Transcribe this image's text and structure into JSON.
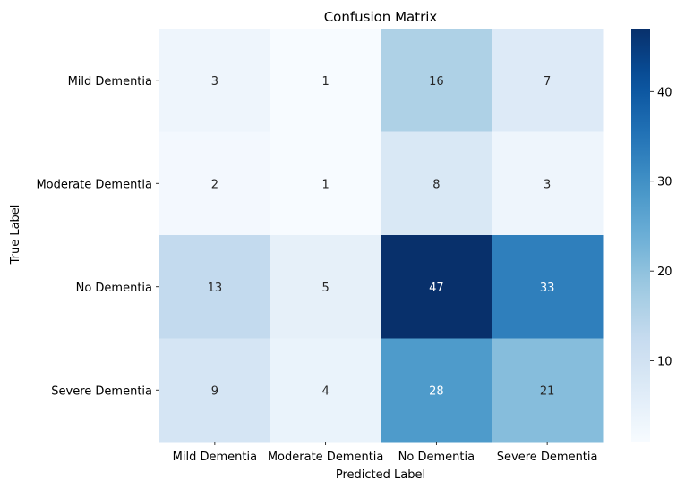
{
  "chart_data": {
    "type": "heatmap",
    "title": "Confusion Matrix",
    "xlabel": "Predicted Label",
    "ylabel": "True Label",
    "x_categories": [
      "Mild Dementia",
      "Moderate Dementia",
      "No Dementia",
      "Severe Dementia"
    ],
    "y_categories": [
      "Mild Dementia",
      "Moderate Dementia",
      "No Dementia",
      "Severe Dementia "
    ],
    "values": [
      [
        3,
        1,
        16,
        7
      ],
      [
        2,
        1,
        8,
        3
      ],
      [
        13,
        5,
        47,
        33
      ],
      [
        9,
        4,
        28,
        21
      ]
    ],
    "colormap": "Blues",
    "vmin": 1,
    "vmax": 47,
    "colorbar_ticks": [
      10,
      20,
      30,
      40
    ],
    "annotated": true,
    "grid": false
  }
}
